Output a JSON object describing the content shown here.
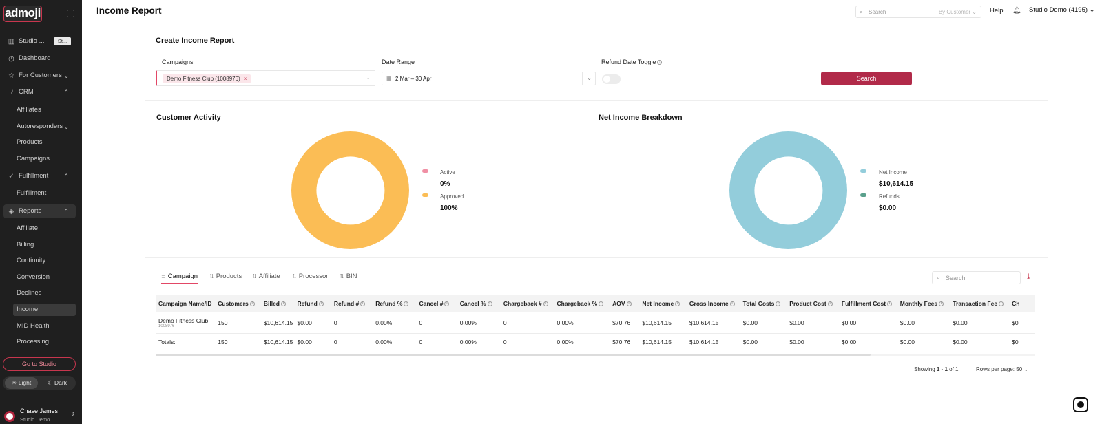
{
  "sidebar": {
    "logo": "admoji",
    "studio_label": "Studio ...",
    "studio_tag": "St...",
    "nav": {
      "dashboard": "Dashboard",
      "for_customers": "For Customers",
      "crm": "CRM",
      "affiliates": "Affiliates",
      "autoresponders": "Autoresponders",
      "products": "Products",
      "campaigns": "Campaigns",
      "fulfillment": "Fulfillment",
      "fulfillment_sub": "Fulfillment",
      "reports": "Reports",
      "affiliate": "Affiliate",
      "billing": "Billing",
      "continuity": "Continuity",
      "conversion": "Conversion",
      "declines": "Declines",
      "income": "Income",
      "mid_health": "MID Health",
      "processing": "Processing"
    },
    "go_to_studio": "Go to Studio",
    "theme": {
      "light": "Light",
      "dark": "Dark"
    },
    "user": {
      "name": "Chase James",
      "org": "Studio Demo"
    }
  },
  "header": {
    "title": "Income Report",
    "search_placeholder": "Search",
    "search_scope": "By Customer",
    "help": "Help",
    "account": "Studio Demo (4195)"
  },
  "create_report": {
    "title": "Create Income Report",
    "campaigns_label": "Campaigns",
    "campaign_chip": "Demo Fitness Club (1008976)",
    "date_range_label": "Date Range",
    "date_range_value": "2 Mar – 30 Apr",
    "refund_toggle_label": "Refund Date Toggle",
    "search_button": "Search"
  },
  "customer_activity": {
    "title": "Customer Activity",
    "legend": [
      {
        "label": "Active",
        "value": "0%",
        "color": "#f08fa4"
      },
      {
        "label": "Approved",
        "value": "100%",
        "color": "#fbbd55"
      }
    ]
  },
  "net_income": {
    "title": "Net Income Breakdown",
    "legend": [
      {
        "label": "Net Income",
        "value": "$10,614.15",
        "color": "#93cddb"
      },
      {
        "label": "Refunds",
        "value": "$0.00",
        "color": "#5aa08c"
      }
    ]
  },
  "chart_data": [
    {
      "type": "pie",
      "title": "Customer Activity",
      "categories": [
        "Active",
        "Approved"
      ],
      "values": [
        0,
        100
      ]
    },
    {
      "type": "pie",
      "title": "Net Income Breakdown",
      "categories": [
        "Net Income",
        "Refunds"
      ],
      "values": [
        10614.15,
        0
      ]
    }
  ],
  "tabs": [
    "Campaign",
    "Products",
    "Affiliate",
    "Processor",
    "BIN"
  ],
  "table": {
    "search_placeholder": "Search",
    "headers": [
      "Campaign Name/ID",
      "Customers",
      "Billed",
      "Refund",
      "Refund #",
      "Refund %",
      "Cancel #",
      "Cancel %",
      "Chargeback #",
      "Chargeback %",
      "AOV",
      "Net Income",
      "Gross Income",
      "Total Costs",
      "Product Cost",
      "Fulfillment Cost",
      "Monthly Fees",
      "Transaction Fee",
      "Ch"
    ],
    "row": {
      "name": "Demo Fitness Club",
      "id": "1008976",
      "cells": [
        "150",
        "$10,614.15",
        "$0.00",
        "0",
        "0.00%",
        "0",
        "0.00%",
        "0",
        "0.00%",
        "$70.76",
        "$10,614.15",
        "$10,614.15",
        "$0.00",
        "$0.00",
        "$0.00",
        "$0.00",
        "$0.00",
        "$0"
      ]
    },
    "totals": {
      "label": "Totals:",
      "cells": [
        "150",
        "$10,614.15",
        "$0.00",
        "0",
        "0.00%",
        "0",
        "0.00%",
        "0",
        "0.00%",
        "$70.76",
        "$10,614.15",
        "$10,614.15",
        "$0.00",
        "$0.00",
        "$0.00",
        "$0.00",
        "$0.00",
        "$0"
      ]
    },
    "showing_prefix": "Showing ",
    "showing_range": "1 - 1",
    "showing_suffix": " of 1",
    "rows_per_page": "Rows per page: 50"
  }
}
